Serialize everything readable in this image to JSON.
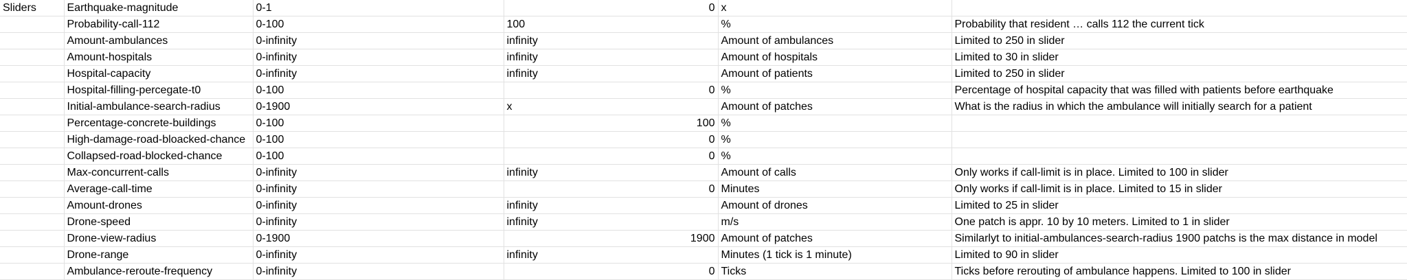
{
  "section_label": "Sliders",
  "rows": [
    {
      "name": "Earthquake-magnitude",
      "range": "0-1",
      "value": "0",
      "value_align": "right",
      "unit": "x",
      "note": ""
    },
    {
      "name": "Probability-call-112",
      "range": "0-100",
      "value": "100",
      "value_align": "left",
      "unit": "%",
      "note": "Probability that resident … calls 112 the current tick"
    },
    {
      "name": "Amount-ambulances",
      "range": "0-infinity",
      "value": "infinity",
      "value_align": "left",
      "unit": "Amount of ambulances",
      "note": "Limited to 250 in slider"
    },
    {
      "name": "Amount-hospitals",
      "range": "0-infinity",
      "value": "infinity",
      "value_align": "left",
      "unit": "Amount of hospitals",
      "note": "Limited to 30 in slider"
    },
    {
      "name": "Hospital-capacity",
      "range": "0-infinity",
      "value": "infinity",
      "value_align": "left",
      "unit": "Amount of patients",
      "note": "Limited to 250 in slider"
    },
    {
      "name": "Hospital-filling-percegate-t0",
      "range": "0-100",
      "value": "0",
      "value_align": "right",
      "unit": "%",
      "note": "Percentage of hospital capacity that was filled with patients before earthquake"
    },
    {
      "name": "Initial-ambulance-search-radius",
      "range": "0-1900",
      "value": "x",
      "value_align": "left",
      "unit": "Amount of patches",
      "note": "What is the radius in which the ambulance will initially search for a patient"
    },
    {
      "name": "Percentage-concrete-buildings",
      "range": "0-100",
      "value": "100",
      "value_align": "right",
      "unit": "%",
      "note": ""
    },
    {
      "name": "High-damage-road-bloacked-chance",
      "range": "0-100",
      "value": "0",
      "value_align": "right",
      "unit": "%",
      "note": ""
    },
    {
      "name": "Collapsed-road-blocked-chance",
      "range": "0-100",
      "value": "0",
      "value_align": "right",
      "unit": "%",
      "note": ""
    },
    {
      "name": "Max-concurrent-calls",
      "range": "0-infinity",
      "value": "infinity",
      "value_align": "left",
      "unit": "Amount of calls",
      "note": "Only works if call-limit is in place. Limited to 100 in slider"
    },
    {
      "name": "Average-call-time",
      "range": "0-infinity",
      "value": "0",
      "value_align": "right",
      "unit": "Minutes",
      "note": "Only works if call-limit is in place. Limited to 15 in slider"
    },
    {
      "name": "Amount-drones",
      "range": "0-infinity",
      "value": "infinity",
      "value_align": "left",
      "unit": "Amount of drones",
      "note": "Limited to 25 in slider"
    },
    {
      "name": "Drone-speed",
      "range": "0-infinity",
      "value": "infinity",
      "value_align": "left",
      "unit": "m/s",
      "note": "One patch is appr. 10 by 10 meters. Limited to 1 in slider"
    },
    {
      "name": "Drone-view-radius",
      "range": "0-1900",
      "value": "1900",
      "value_align": "right",
      "unit": "Amount of patches",
      "note": "Similarlyt to initial-ambulances-search-radius 1900 patchs is the max distance in model"
    },
    {
      "name": "Drone-range",
      "range": "0-infinity",
      "value": "infinity",
      "value_align": "left",
      "unit": "Minutes (1 tick is 1 minute)",
      "note": "Limited to 90 in slider"
    },
    {
      "name": "Ambulance-reroute-frequency",
      "range": "0-infinity",
      "value": "0",
      "value_align": "right",
      "unit": "Ticks",
      "note": "Ticks before rerouting of ambulance happens. Limited to 100 in slider"
    }
  ]
}
